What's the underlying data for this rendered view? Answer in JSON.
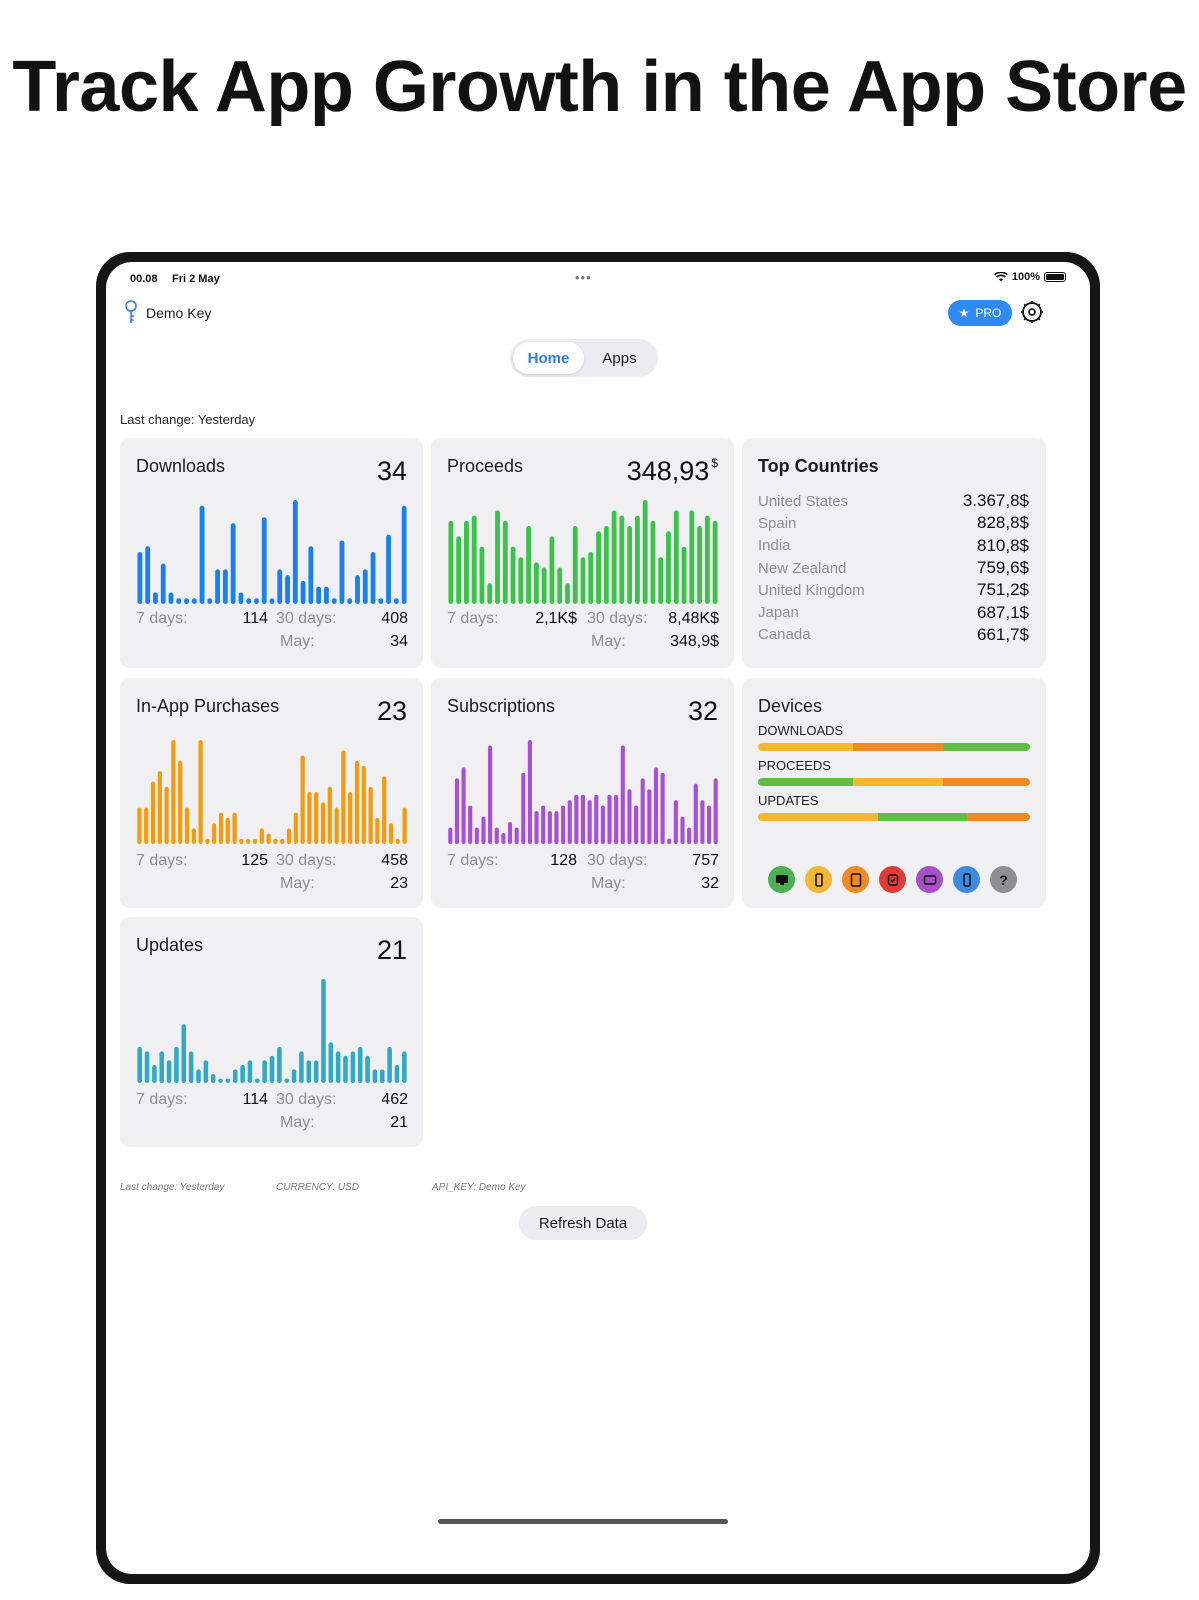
{
  "headline": "Track App Growth in the App Store",
  "status_bar": {
    "time": "00.08",
    "date": "Fri 2 May",
    "battery": "100%"
  },
  "header": {
    "key_label": "Demo Key",
    "pro_label": "PRO"
  },
  "tabs": [
    {
      "label": "Home",
      "active": true
    },
    {
      "label": "Apps",
      "active": false
    }
  ],
  "last_change": "Last change: Yesterday",
  "labels": {
    "seven_days": "7 days:",
    "thirty_days": "30 days:",
    "month": "May:"
  },
  "cards": {
    "downloads": {
      "title": "Downloads",
      "value": "34",
      "seven": "114",
      "thirty": "408",
      "month": "34"
    },
    "proceeds": {
      "title": "Proceeds",
      "value": "348,93",
      "unit": "$",
      "seven": "2,1K$",
      "thirty": "8,48K$",
      "month": "348,9$"
    },
    "iap": {
      "title": "In-App Purchases",
      "value": "23",
      "seven": "125",
      "thirty": "458",
      "month": "23"
    },
    "subscriptions": {
      "title": "Subscriptions",
      "value": "32",
      "seven": "128",
      "thirty": "757",
      "month": "32"
    },
    "updates": {
      "title": "Updates",
      "value": "21",
      "seven": "114",
      "thirty": "462",
      "month": "21"
    }
  },
  "top_countries": {
    "title": "Top Countries",
    "rows": [
      {
        "name": "United States",
        "value": "3.367,8$"
      },
      {
        "name": "Spain",
        "value": "828,8$"
      },
      {
        "name": "India",
        "value": "810,8$"
      },
      {
        "name": "New Zealand",
        "value": "759,6$"
      },
      {
        "name": "United Kingdom",
        "value": "751,2$"
      },
      {
        "name": "Japan",
        "value": "687,1$"
      },
      {
        "name": "Canada",
        "value": "661,7$"
      }
    ]
  },
  "devices": {
    "title": "Devices",
    "downloads_label": "DOWNLOADS",
    "proceeds_label": "PROCEEDS",
    "updates_label": "UPDATES",
    "downloads_bar": [
      {
        "color": "#f5b731",
        "frac": 0.35
      },
      {
        "color": "#f28a24",
        "frac": 0.33
      },
      {
        "color": "#62bd45",
        "frac": 0.32
      }
    ],
    "proceeds_bar": [
      {
        "color": "#62bd45",
        "frac": 0.35
      },
      {
        "color": "#f5b731",
        "frac": 0.33
      },
      {
        "color": "#f28a24",
        "frac": 0.32
      }
    ],
    "updates_bar": [
      {
        "color": "#f5b731",
        "frac": 0.44
      },
      {
        "color": "#62bd45",
        "frac": 0.33
      },
      {
        "color": "#f28a24",
        "frac": 0.23
      }
    ],
    "icons": [
      {
        "name": "desktop-icon",
        "color": "#4caf50",
        "glyph": "desktop"
      },
      {
        "name": "iphone-icon",
        "color": "#f5b731",
        "glyph": "phone"
      },
      {
        "name": "ipad-icon",
        "color": "#f28a24",
        "glyph": "tablet"
      },
      {
        "name": "watch-icon",
        "color": "#e53935",
        "glyph": "watch"
      },
      {
        "name": "appletv-icon",
        "color": "#a84fc9",
        "glyph": "tv"
      },
      {
        "name": "ipod-icon",
        "color": "#3a8dde",
        "glyph": "phone"
      },
      {
        "name": "unknown-device-icon",
        "color": "#8e8e93",
        "glyph": "?"
      }
    ]
  },
  "footer": {
    "last_change": "Last change: Yesterday",
    "currency": "CURRENCY: USD",
    "api_key": "API_KEY: Demo Key",
    "refresh_label": "Refresh Data"
  },
  "colors": {
    "downloads": "#1a7ff0",
    "proceeds": "#3cc24a",
    "iap": "#f59a0c",
    "subscriptions": "#a84fd9",
    "updates": "#2fa9c6",
    "accent": "#2f7df2"
  },
  "chart_data": [
    {
      "type": "bar",
      "title": "Downloads",
      "values": [
        9,
        10,
        2,
        7,
        2,
        1,
        1,
        1,
        17,
        1,
        6,
        6,
        14,
        2,
        1,
        1,
        15,
        1,
        6,
        5,
        18,
        4,
        10,
        3,
        3,
        1,
        11,
        1,
        5,
        6,
        9,
        1,
        12,
        1,
        17
      ]
    },
    {
      "type": "bar",
      "title": "Proceeds",
      "values": [
        16,
        13,
        16,
        17,
        11,
        4,
        18,
        16,
        11,
        9,
        15,
        8,
        7,
        13,
        7,
        4,
        15,
        9,
        10,
        14,
        15,
        18,
        17,
        15,
        17,
        20,
        16,
        9,
        14,
        18,
        11,
        18,
        15,
        17,
        16
      ]
    },
    {
      "type": "bar",
      "title": "In-App Purchases",
      "values": [
        7,
        7,
        12,
        14,
        11,
        20,
        16,
        7,
        3,
        20,
        1,
        4,
        6,
        5,
        6,
        1,
        1,
        1,
        3,
        2,
        1,
        1,
        3,
        6,
        17,
        10,
        10,
        8,
        11,
        7,
        18,
        10,
        16,
        15,
        11,
        5,
        13,
        4,
        1,
        7
      ]
    },
    {
      "type": "bar",
      "title": "Subscriptions",
      "values": [
        3,
        12,
        14,
        7,
        3,
        5,
        18,
        3,
        2,
        4,
        3,
        13,
        19,
        6,
        7,
        6,
        6,
        7,
        8,
        9,
        9,
        8,
        9,
        7,
        9,
        9,
        18,
        10,
        7,
        12,
        10,
        14,
        13,
        1,
        8,
        5,
        3,
        11,
        8,
        7,
        12
      ]
    },
    {
      "type": "bar",
      "title": "Updates",
      "values": [
        8,
        7,
        4,
        7,
        5,
        8,
        13,
        7,
        3,
        5,
        2,
        1,
        1,
        3,
        4,
        5,
        1,
        5,
        6,
        8,
        1,
        3,
        7,
        5,
        5,
        23,
        9,
        7,
        6,
        7,
        8,
        6,
        3,
        3,
        8,
        4,
        7
      ]
    }
  ]
}
